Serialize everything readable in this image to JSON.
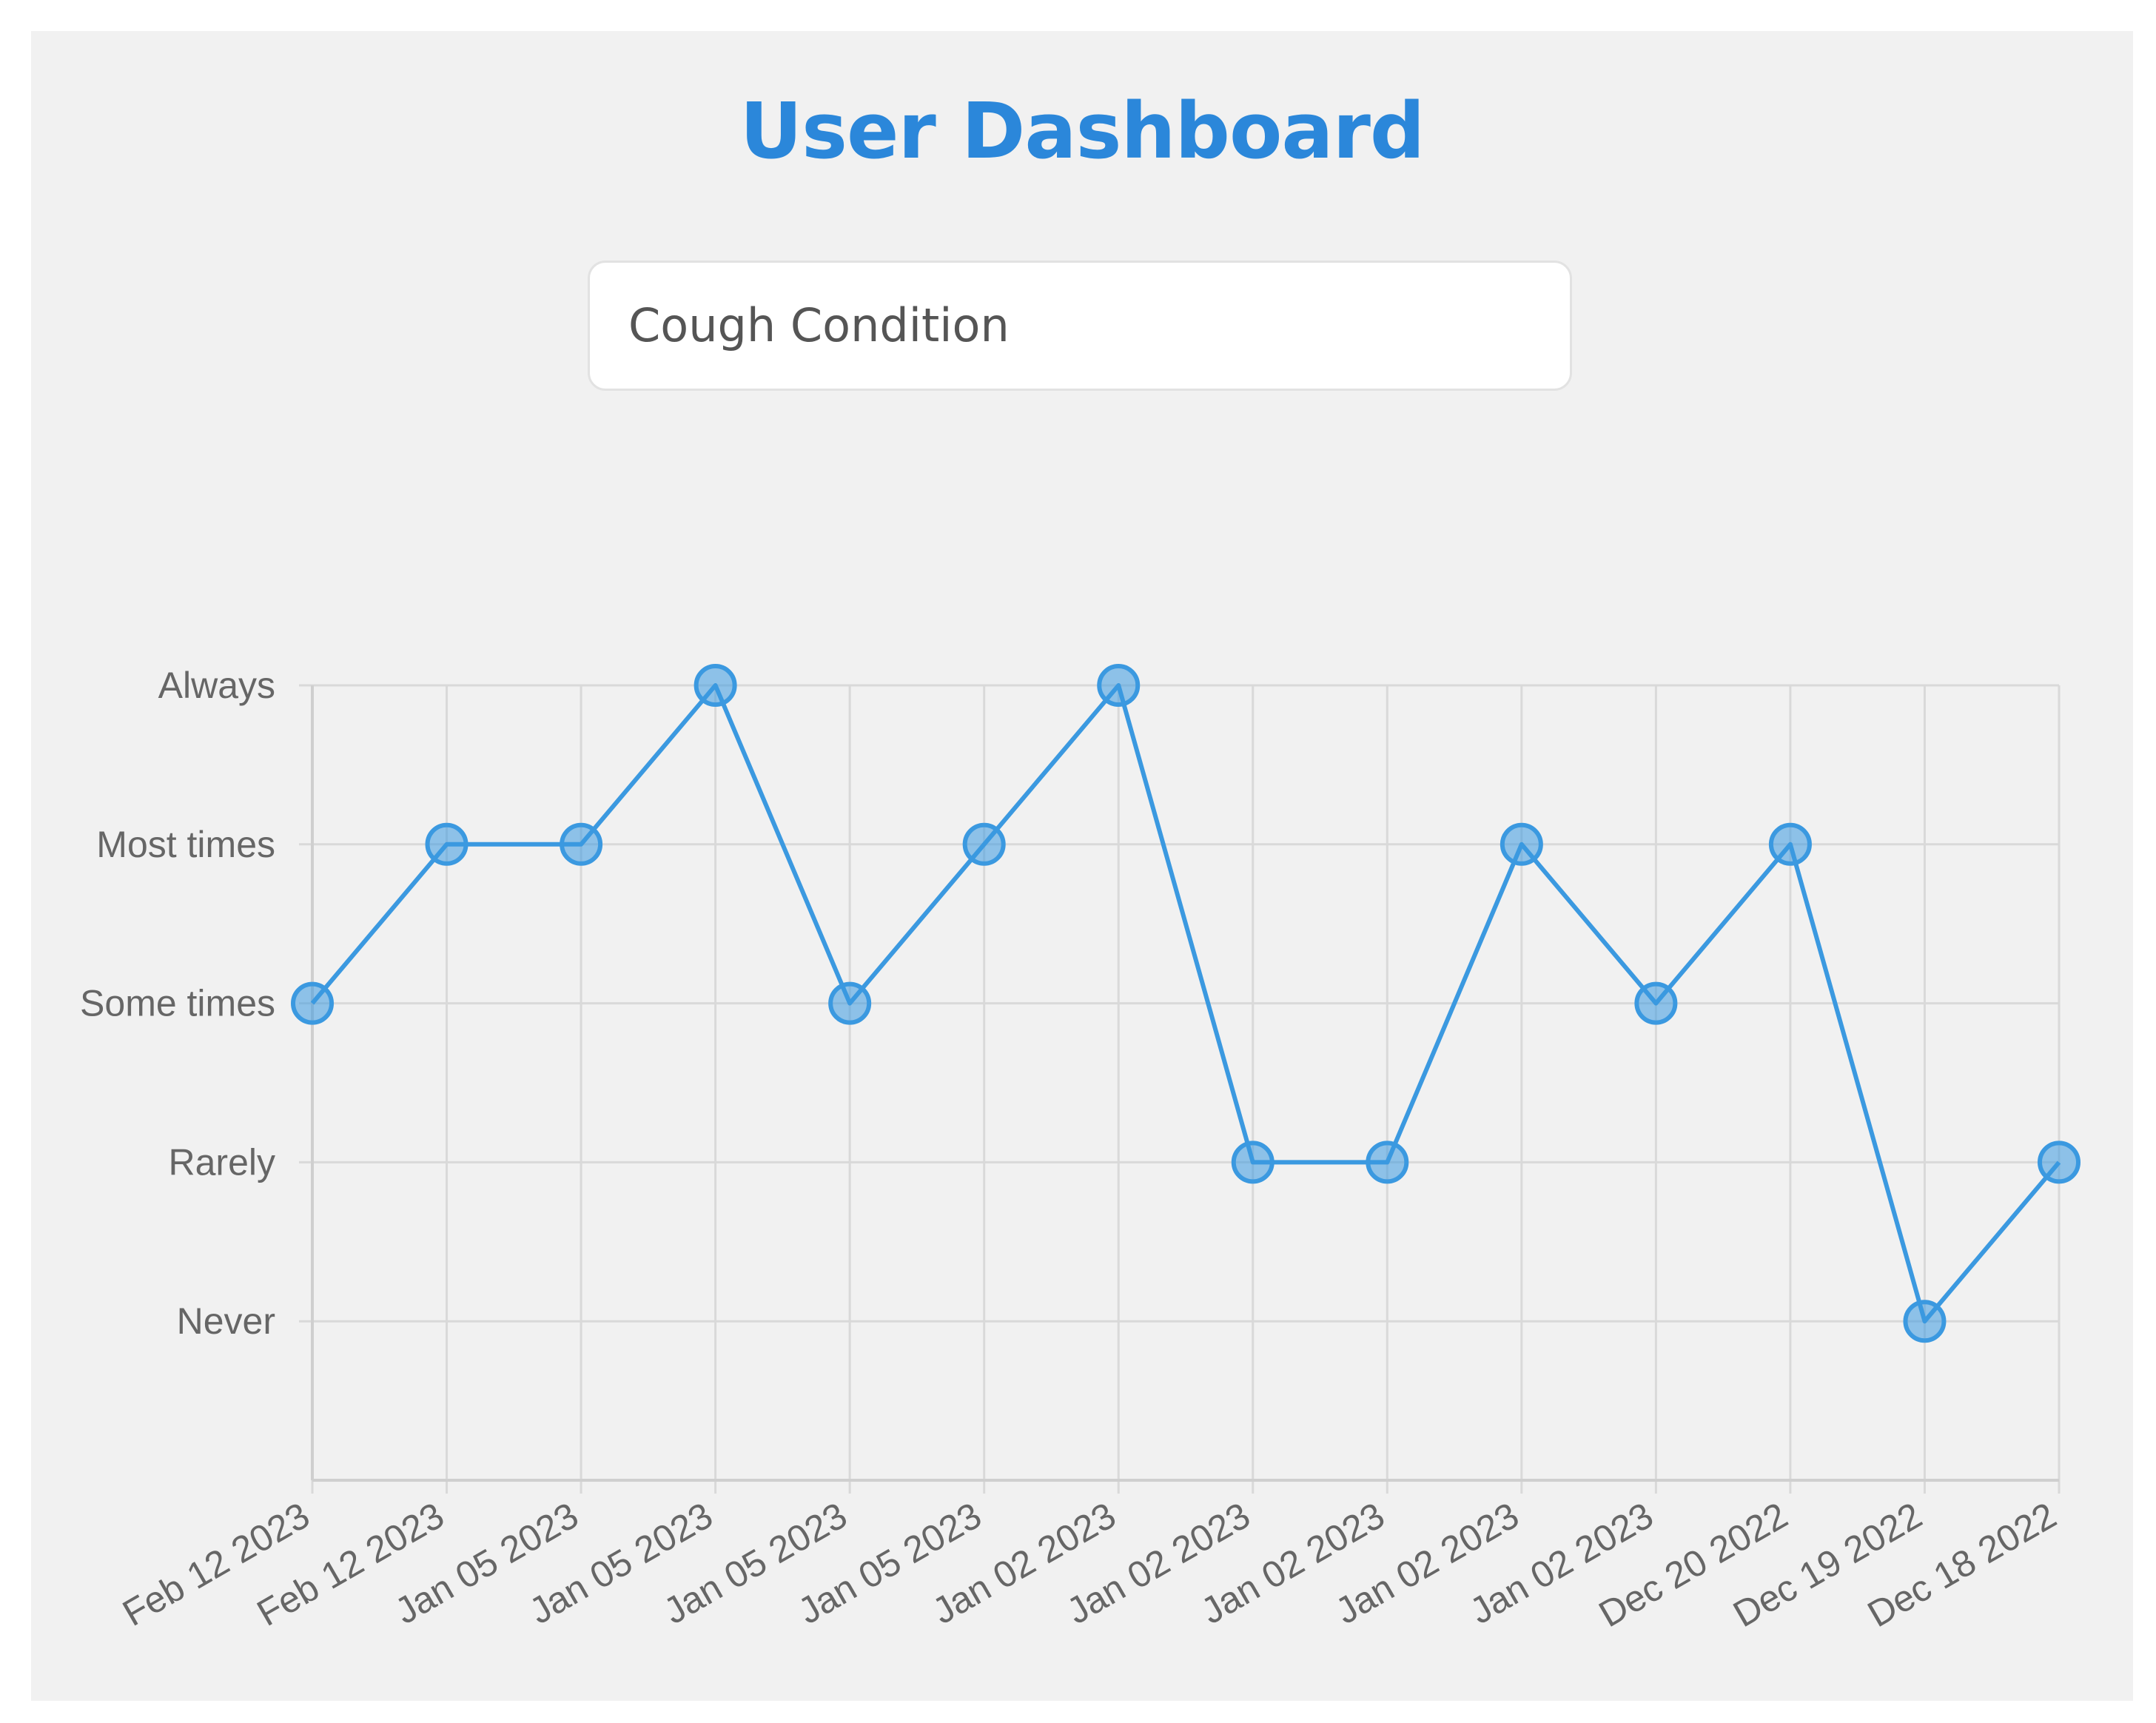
{
  "header": {
    "title": "User Dashboard",
    "title_color": "#2b87da"
  },
  "condition_select": {
    "value": "Cough Condition"
  },
  "chart_data": {
    "type": "line",
    "title": "",
    "xlabel": "",
    "ylabel": "",
    "y_categories": [
      "Never",
      "Rarely",
      "Some times",
      "Most times",
      "Always"
    ],
    "ylim": [
      -1,
      4
    ],
    "grid": true,
    "legend": "none",
    "color": "#3b99e0",
    "categories": [
      "Feb 12 2023",
      "Feb 12 2023",
      "Jan 05 2023",
      "Jan 05 2023",
      "Jan 05 2023",
      "Jan 05 2023",
      "Jan 02 2023",
      "Jan 02 2023",
      "Jan 02 2023",
      "Jan 02 2023",
      "Jan 02 2023",
      "Dec 20 2022",
      "Dec 19 2022",
      "Dec 18 2022"
    ],
    "values": [
      "Some times",
      "Most times",
      "Most times",
      "Always",
      "Some times",
      "Most times",
      "Always",
      "Rarely",
      "Rarely",
      "Most times",
      "Some times",
      "Most times",
      "Never",
      "Rarely"
    ]
  }
}
